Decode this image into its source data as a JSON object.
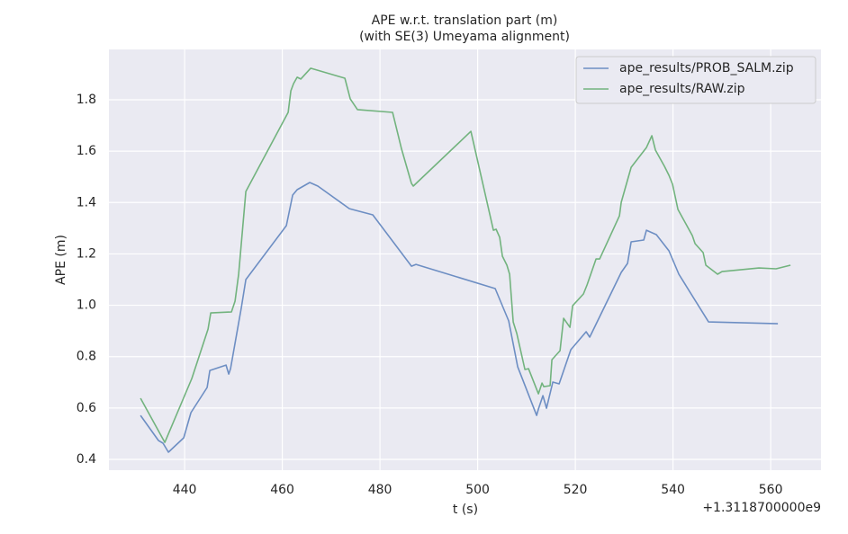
{
  "chart_data": {
    "type": "line",
    "title": "APE w.r.t. translation part (m)",
    "subtitle": "(with SE(3) Umeyama alignment)",
    "xlabel": "t (s)",
    "ylabel": "APE (m)",
    "x_offset_label": "+1.3118700000e9",
    "xlim": [
      424.5,
      570.3
    ],
    "xticks": [
      440,
      460,
      480,
      500,
      520,
      540,
      560
    ],
    "ylim": [
      0.358,
      1.996
    ],
    "yticks": [
      0.4,
      0.6,
      0.8,
      {
        "value": 1.0,
        "label": "1.0"
      },
      1.2,
      1.4,
      1.6,
      1.8
    ],
    "grid": true,
    "legend": "upper right",
    "series": [
      {
        "name": "ape_results/PROB_SALM.zip",
        "color": "#6d8ec3",
        "x": [
          430.97,
          434.65,
          435.58,
          436.68,
          439.82,
          441.29,
          444.61,
          445.16,
          448.48,
          449.03,
          449.4,
          451.61,
          452.53,
          460.83,
          462.12,
          463.04,
          465.62,
          467.28,
          473.73,
          478.53,
          486.45,
          487.37,
          503.59,
          506.36,
          508.2,
          512.07,
          512.44,
          513.36,
          514.1,
          515.39,
          516.68,
          519.08,
          522.21,
          522.95,
          529.4,
          530.69,
          531.43,
          534.01,
          534.56,
          536.59,
          539.17,
          541.2,
          547.28,
          561.47
        ],
        "values": [
          0.571,
          0.473,
          0.463,
          0.428,
          0.484,
          0.582,
          0.68,
          0.746,
          0.767,
          0.732,
          0.753,
          0.991,
          1.1,
          1.31,
          1.429,
          1.45,
          1.478,
          1.464,
          1.376,
          1.352,
          1.152,
          1.159,
          1.065,
          0.939,
          0.76,
          0.571,
          0.596,
          0.648,
          0.599,
          0.701,
          0.694,
          0.827,
          0.897,
          0.876,
          1.128,
          1.163,
          1.247,
          1.254,
          1.292,
          1.275,
          1.212,
          1.121,
          0.935,
          0.928
        ]
      },
      {
        "name": "ape_results/RAW.zip",
        "color": "#72b37e",
        "x": [
          430.97,
          435.94,
          441.47,
          444.79,
          445.35,
          449.59,
          450.32,
          451.06,
          452.53,
          461.2,
          461.75,
          462.3,
          463.04,
          463.78,
          465.81,
          472.81,
          473.92,
          475.39,
          482.58,
          484.42,
          486.45,
          486.82,
          498.62,
          503.23,
          503.78,
          504.52,
          505.07,
          505.99,
          506.54,
          507.28,
          508.02,
          509.68,
          510.41,
          512.44,
          513.18,
          513.55,
          514.84,
          515.21,
          516.87,
          517.6,
          518.89,
          519.45,
          521.66,
          522.4,
          524.24,
          524.98,
          529.03,
          529.4,
          531.43,
          534.56,
          535.67,
          536.41,
          538.25,
          539.17,
          539.91,
          541.01,
          543.96,
          544.52,
          546.18,
          546.73,
          549.12,
          550.05,
          557.6,
          561.11,
          564.06
        ],
        "values": [
          0.638,
          0.466,
          0.715,
          0.907,
          0.97,
          0.974,
          1.016,
          1.121,
          1.443,
          1.751,
          1.835,
          1.863,
          1.888,
          1.881,
          1.923,
          1.884,
          1.803,
          1.762,
          1.751,
          1.608,
          1.474,
          1.464,
          1.677,
          1.292,
          1.296,
          1.264,
          1.191,
          1.156,
          1.121,
          0.935,
          0.89,
          0.75,
          0.753,
          0.655,
          0.697,
          0.683,
          0.687,
          0.788,
          0.823,
          0.949,
          0.914,
          0.998,
          1.044,
          1.079,
          1.18,
          1.18,
          1.348,
          1.401,
          1.537,
          1.614,
          1.66,
          1.604,
          1.541,
          1.506,
          1.471,
          1.373,
          1.271,
          1.24,
          1.205,
          1.156,
          1.121,
          1.131,
          1.145,
          1.142,
          1.156
        ]
      }
    ]
  }
}
